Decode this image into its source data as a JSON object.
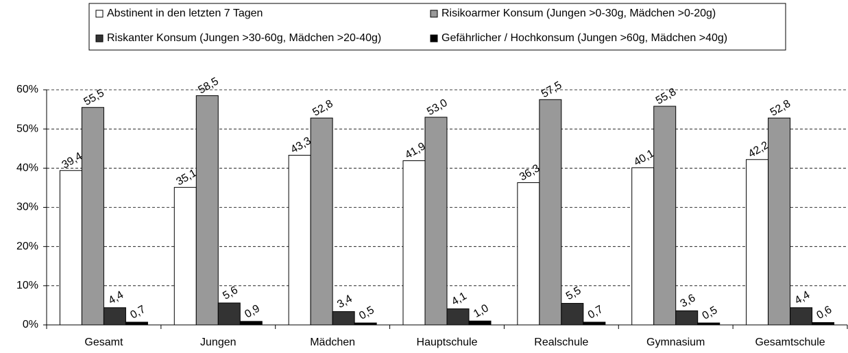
{
  "chart_data": {
    "type": "bar",
    "categories": [
      "Gesamt",
      "Jungen",
      "Mädchen",
      "Hauptschule",
      "Realschule",
      "Gymnasium",
      "Gesamtschule"
    ],
    "series": [
      {
        "name": "Abstinent in den letzten 7 Tagen",
        "color": "#ffffff",
        "values": [
          39.4,
          35.1,
          43.3,
          41.9,
          36.3,
          40.1,
          42.2
        ],
        "value_labels": [
          "39,4",
          "35,1",
          "43,3",
          "41,9",
          "36,3",
          "40,1",
          "42,2"
        ]
      },
      {
        "name": "Risikoarmer Konsum (Jungen >0-30g, Mädchen >0-20g)",
        "color": "#999999",
        "values": [
          55.5,
          58.5,
          52.8,
          53.0,
          57.5,
          55.8,
          52.8
        ],
        "value_labels": [
          "55,5",
          "58,5",
          "52,8",
          "53,0",
          "57,5",
          "55,8",
          "52,8"
        ]
      },
      {
        "name": "Riskanter Konsum (Jungen >30-60g, Mädchen >20-40g)",
        "color": "#333333",
        "values": [
          4.4,
          5.6,
          3.4,
          4.1,
          5.5,
          3.6,
          4.4
        ],
        "value_labels": [
          "4,4",
          "5,6",
          "3,4",
          "4,1",
          "5,5",
          "3,6",
          "4,4"
        ]
      },
      {
        "name": "Gefährlicher / Hochkonsum (Jungen >60g, Mädchen >40g)",
        "color": "#000000",
        "values": [
          0.7,
          0.9,
          0.5,
          1.0,
          0.7,
          0.5,
          0.6
        ],
        "value_labels": [
          "0,7",
          "0,9",
          "0,5",
          "1,0",
          "0,7",
          "0,5",
          "0,6"
        ]
      }
    ],
    "ylim": [
      0,
      60
    ],
    "yticks": [
      {
        "value": 0,
        "label": "0%"
      },
      {
        "value": 10,
        "label": "10%"
      },
      {
        "value": 20,
        "label": "20%"
      },
      {
        "value": 30,
        "label": "30%"
      },
      {
        "value": 40,
        "label": "40%"
      },
      {
        "value": 50,
        "label": "50%"
      },
      {
        "value": 60,
        "label": "60%"
      }
    ],
    "grid": true,
    "legend": "top"
  }
}
